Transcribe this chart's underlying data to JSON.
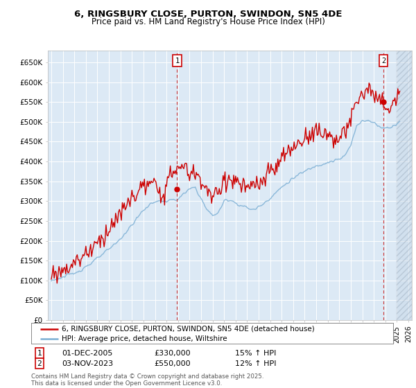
{
  "title": "6, RINGSBURY CLOSE, PURTON, SWINDON, SN5 4DE",
  "subtitle": "Price paid vs. HM Land Registry's House Price Index (HPI)",
  "ylabel_ticks": [
    "£0",
    "£50K",
    "£100K",
    "£150K",
    "£200K",
    "£250K",
    "£300K",
    "£350K",
    "£400K",
    "£450K",
    "£500K",
    "£550K",
    "£600K",
    "£650K"
  ],
  "ytick_values": [
    0,
    50000,
    100000,
    150000,
    200000,
    250000,
    300000,
    350000,
    400000,
    450000,
    500000,
    550000,
    600000,
    650000
  ],
  "ylim": [
    0,
    680000
  ],
  "xlim_start": 1994.7,
  "xlim_end": 2026.3,
  "background_color": "#dce9f5",
  "grid_color": "#ffffff",
  "red_line_color": "#cc0000",
  "blue_line_color": "#7bafd4",
  "marker1_x": 2005.92,
  "marker2_x": 2023.84,
  "sale1_date": "01-DEC-2005",
  "sale1_price": "£330,000",
  "sale1_hpi": "15% ↑ HPI",
  "sale2_date": "03-NOV-2023",
  "sale2_price": "£550,000",
  "sale2_hpi": "12% ↑ HPI",
  "legend_line1": "6, RINGSBURY CLOSE, PURTON, SWINDON, SN5 4DE (detached house)",
  "legend_line2": "HPI: Average price, detached house, Wiltshire",
  "footnote": "Contains HM Land Registry data © Crown copyright and database right 2025.\nThis data is licensed under the Open Government Licence v3.0.",
  "hatch_start": 2025.0,
  "sale1_marker_y": 330000,
  "sale2_marker_y": 550000
}
